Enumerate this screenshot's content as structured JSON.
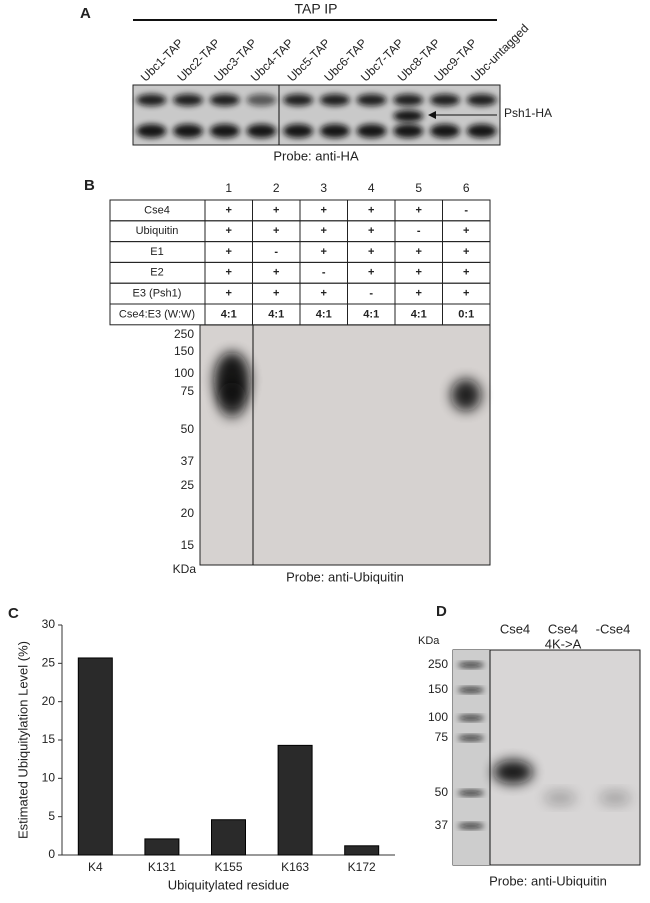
{
  "panel_a": {
    "label": "A",
    "header": "TAP IP",
    "lanes": [
      "Ubc1-TAP",
      "Ubc2-TAP",
      "Ubc3-TAP",
      "Ubc4-TAP",
      "Ubc5-TAP",
      "Ubc6-TAP",
      "Ubc7-TAP",
      "Ubc8-TAP",
      "Ubc9-TAP",
      "Ubc-untagged"
    ],
    "annotation": "Psh1-HA",
    "probe": "Probe: anti-HA"
  },
  "panel_b": {
    "label": "B",
    "lanes": [
      "1",
      "2",
      "3",
      "4",
      "5",
      "6"
    ],
    "rows": [
      {
        "name": "Cse4",
        "cells": [
          "+",
          "+",
          "+",
          "+",
          "+",
          "-"
        ]
      },
      {
        "name": "Ubiquitin",
        "cells": [
          "+",
          "+",
          "+",
          "+",
          "-",
          "+"
        ]
      },
      {
        "name": "E1",
        "cells": [
          "+",
          "-",
          "+",
          "+",
          "+",
          "+"
        ]
      },
      {
        "name": "E2",
        "cells": [
          "+",
          "+",
          "-",
          "+",
          "+",
          "+"
        ]
      },
      {
        "name": "E3 (Psh1)",
        "cells": [
          "+",
          "+",
          "+",
          "-",
          "+",
          "+"
        ]
      },
      {
        "name": "Cse4:E3 (W:W)",
        "cells": [
          "4:1",
          "4:1",
          "4:1",
          "4:1",
          "4:1",
          "0:1"
        ]
      }
    ],
    "markers": [
      "250",
      "150",
      "100",
      "75",
      "50",
      "37",
      "25",
      "20",
      "15"
    ],
    "unit": "KDa",
    "probe": "Probe: anti-Ubiquitin"
  },
  "chart_data": {
    "type": "bar",
    "label": "C",
    "categories": [
      "K4",
      "K131",
      "K155",
      "K163",
      "K172"
    ],
    "values": [
      25.7,
      2.1,
      4.6,
      14.3,
      1.2
    ],
    "color": "#2a2a2a",
    "x_label": "Ubiquitylated residue",
    "y_label": "Estimated Ubiquitylation Level (%)",
    "ylim": [
      0,
      30
    ],
    "yticks": [
      0,
      5,
      10,
      15,
      20,
      25,
      30
    ],
    "grid": false
  },
  "panel_d": {
    "label": "D",
    "lanes": [
      [
        "Cse4"
      ],
      [
        "Cse4",
        "4K->A"
      ],
      [
        "-Cse4"
      ]
    ],
    "markers": [
      "250",
      "150",
      "100",
      "75",
      "50",
      "37"
    ],
    "unit": "KDa",
    "probe": "Probe: anti-Ubiquitin"
  }
}
